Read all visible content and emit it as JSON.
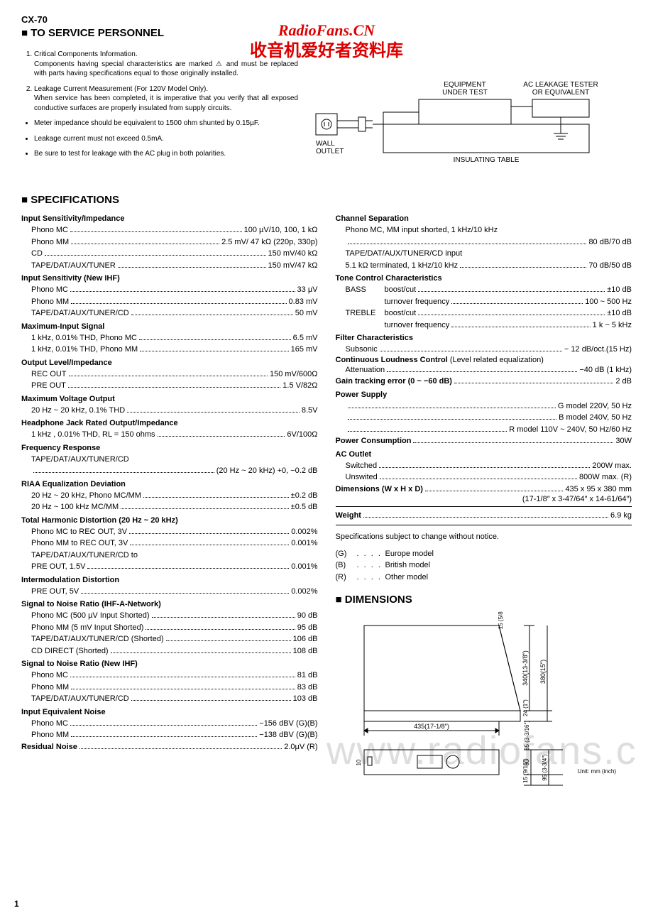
{
  "model": "CX-70",
  "watermark_line1": "RadioFans.CN",
  "watermark_line2": "收音机爱好者资料库",
  "gray_watermark": "www.radiofans.c",
  "service_header": "TO SERVICE PERSONNEL",
  "service_notes_numbered": [
    "Critical Components Information.\nComponents having special characteristics are marked ⚠ and must be replaced with parts having specifications equal to those originally installed.",
    "Leakage Current Measurement (For 120V Model Only).\nWhen service has been completed, it is imperative that you verify that all exposed conductive surfaces are properly insulated from supply circuits."
  ],
  "service_notes_bullets": [
    "Meter impedance should be equivalent to 1500 ohm shunted by 0.15µF.",
    "Leakage current must not exceed 0.5mA.",
    "Be sure to test for leakage with the AC plug in both polarities."
  ],
  "diagram": {
    "wall_outlet": "WALL OUTLET",
    "equipment": "EQUIPMENT UNDER TEST",
    "tester": "AC LEAKAGE TESTER OR EQUIVALENT",
    "insulating": "INSULATING TABLE"
  },
  "specifications_heading": "SPECIFICATIONS",
  "left_col": [
    {
      "type": "heading",
      "text": "Input Sensitivity/Impedance"
    },
    {
      "type": "spec",
      "label": "Phono MC",
      "value": "100 µV/10, 100, 1 kΩ"
    },
    {
      "type": "spec",
      "label": "Phono MM",
      "value": "2.5 mV/ 47 kΩ (220p, 330p)"
    },
    {
      "type": "spec",
      "label": "CD",
      "value": "150 mV/40 kΩ"
    },
    {
      "type": "spec",
      "label": "TAPE/DAT/AUX/TUNER",
      "value": "150 mV/47 kΩ"
    },
    {
      "type": "heading",
      "text": "Input Sensitivity (New IHF)"
    },
    {
      "type": "spec",
      "label": "Phono MC",
      "value": "33 µV"
    },
    {
      "type": "spec",
      "label": "Phono MM",
      "value": "0.83 mV"
    },
    {
      "type": "spec",
      "label": "TAPE/DAT/AUX/TUNER/CD",
      "value": "50 mV"
    },
    {
      "type": "heading",
      "text": "Maximum-Input Signal"
    },
    {
      "type": "spec",
      "label": "1 kHz, 0.01% THD, Phono MC",
      "value": "6.5 mV"
    },
    {
      "type": "spec",
      "label": "1 kHz, 0.01% THD, Phono MM",
      "value": "165 mV"
    },
    {
      "type": "heading",
      "text": "Output Level/Impedance"
    },
    {
      "type": "spec",
      "label": "REC OUT",
      "value": "150 mV/600Ω"
    },
    {
      "type": "spec",
      "label": "PRE OUT",
      "value": "1.5 V/82Ω"
    },
    {
      "type": "heading",
      "text": "Maximum Voltage Output"
    },
    {
      "type": "spec",
      "label": "20 Hz ~ 20 kHz, 0.1% THD",
      "value": "8.5V"
    },
    {
      "type": "heading",
      "text": "Headphone Jack Rated Output/Impedance"
    },
    {
      "type": "spec",
      "label": "1 kHz , 0.01% THD, RL = 150 ohms",
      "value": "6V/100Ω"
    },
    {
      "type": "heading",
      "text": "Frequency Response"
    },
    {
      "type": "text",
      "text": "TAPE/DAT/AUX/TUNER/CD"
    },
    {
      "type": "spec",
      "label": "",
      "value": "(20 Hz ~ 20 kHz) +0, −0.2 dB"
    },
    {
      "type": "heading",
      "text": "RIAA Equalization Deviation"
    },
    {
      "type": "spec",
      "label": "20 Hz ~ 20 kHz, Phono MC/MM",
      "value": "±0.2 dB"
    },
    {
      "type": "spec",
      "label": "20 Hz ~ 100 kHz        MC/MM",
      "value": "±0.5 dB"
    },
    {
      "type": "heading",
      "text": "Total Harmonic Distortion (20 Hz ~ 20 kHz)"
    },
    {
      "type": "spec",
      "label": "Phono MC to REC OUT, 3V",
      "value": "0.002%"
    },
    {
      "type": "spec",
      "label": "Phono MM to REC OUT, 3V",
      "value": "0.001%"
    },
    {
      "type": "text",
      "text": "TAPE/DAT/AUX/TUNER/CD to"
    },
    {
      "type": "spec",
      "label": "PRE OUT, 1.5V",
      "value": "0.001%"
    },
    {
      "type": "heading",
      "text": "Intermodulation Distortion"
    },
    {
      "type": "spec",
      "label": "PRE OUT, 5V",
      "value": "0.002%"
    },
    {
      "type": "heading",
      "text": "Signal to Noise Ratio (IHF-A-Network)"
    },
    {
      "type": "spec",
      "label": "Phono MC (500 µV Input Shorted)",
      "value": "90 dB"
    },
    {
      "type": "spec",
      "label": "Phono MM (5 mV Input Shorted)",
      "value": "95 dB"
    },
    {
      "type": "spec",
      "label": "TAPE/DAT/AUX/TUNER/CD (Shorted)",
      "value": "106 dB"
    },
    {
      "type": "spec",
      "label": "CD DIRECT (Shorted)",
      "value": "108 dB"
    },
    {
      "type": "heading",
      "text": "Signal to Noise Ratio (New IHF)"
    },
    {
      "type": "spec",
      "label": "Phono MC",
      "value": "81 dB"
    },
    {
      "type": "spec",
      "label": "Phono MM",
      "value": "83 dB"
    },
    {
      "type": "spec",
      "label": "TAPE/DAT/AUX/TUNER/CD",
      "value": "103 dB"
    },
    {
      "type": "heading",
      "text": "Input Equivalent Noise"
    },
    {
      "type": "spec",
      "label": "Phono MC",
      "value": "−156 dBV (G)(B)"
    },
    {
      "type": "spec",
      "label": "Phono MM",
      "value": "−138 dBV (G)(B)"
    },
    {
      "type": "spec_inline",
      "label": "Residual Noise",
      "value": "2.0µV (R)"
    }
  ],
  "right_col": [
    {
      "type": "heading",
      "text": "Channel Separation"
    },
    {
      "type": "text",
      "text": "Phono MC, MM input shorted, 1 kHz/10 kHz"
    },
    {
      "type": "spec",
      "label": "",
      "value": "80 dB/70 dB"
    },
    {
      "type": "text",
      "text": "TAPE/DAT/AUX/TUNER/CD input"
    },
    {
      "type": "spec",
      "label": "5.1 kΩ terminated, 1 kHz/10 kHz",
      "value": "70 dB/50 dB"
    },
    {
      "type": "heading",
      "text": "Tone Control Characteristics"
    },
    {
      "type": "tone",
      "label": "BASS",
      "specs": [
        {
          "label": "boost/cut",
          "value": "±10 dB"
        },
        {
          "label": "turnover frequency",
          "value": "100 ~ 500 Hz"
        }
      ]
    },
    {
      "type": "tone",
      "label": "TREBLE",
      "specs": [
        {
          "label": "boost/cut",
          "value": "±10 dB"
        },
        {
          "label": "turnover frequency",
          "value": "1 k ~ 5 kHz"
        }
      ]
    },
    {
      "type": "heading",
      "text": "Filter Characteristics"
    },
    {
      "type": "spec",
      "label": "Subsonic",
      "value": "− 12 dB/oct.(15 Hz)"
    },
    {
      "type": "heading_inline",
      "text": "Continuous Loudness Control",
      "suffix": " (Level related equalization)"
    },
    {
      "type": "spec",
      "label": "Attenuation",
      "value": "−40 dB (1 kHz)"
    },
    {
      "type": "spec_inline",
      "label": "Gain tracking error (0 ~ −60 dB)",
      "value": "2 dB"
    },
    {
      "type": "heading",
      "text": "Power Supply"
    },
    {
      "type": "spec",
      "label": "",
      "value": "G model 220V, 50 Hz"
    },
    {
      "type": "spec",
      "label": "",
      "value": "B model 240V, 50 Hz"
    },
    {
      "type": "spec",
      "label": "",
      "value": "R model 110V ~ 240V, 50 Hz/60 Hz"
    },
    {
      "type": "spec_inline",
      "label": "Power Consumption",
      "value": "30W"
    },
    {
      "type": "heading",
      "text": "AC Outlet"
    },
    {
      "type": "spec",
      "label": "Switched",
      "value": "200W max."
    },
    {
      "type": "spec",
      "label": "Unswited",
      "value": "800W max. (R)"
    },
    {
      "type": "spec_inline",
      "label": "Dimensions (W x H x D)",
      "value": "435 x 95 x 380 mm"
    },
    {
      "type": "right_text",
      "text": "(17-1/8″ x 3-47/64″ x 14-61/64″)"
    },
    {
      "type": "hr"
    },
    {
      "type": "spec_inline",
      "label": "Weight",
      "value": "6.9 kg"
    },
    {
      "type": "hr"
    }
  ],
  "notice": "Specifications subject to change without notice.",
  "model_keys": [
    {
      "code": "(G)",
      "desc": "Europe model"
    },
    {
      "code": "(B)",
      "desc": "British model"
    },
    {
      "code": "(R)",
      "desc": "Other model"
    }
  ],
  "dimensions_heading": "DIMENSIONS",
  "dim_labels": {
    "width": "435(17-1/8″)",
    "depth1": "340(13-3/8″)",
    "depth2": "380(15″)",
    "h1": "15 (5/8″)",
    "h2": "24 (1″)",
    "h3": "85 (3-3/16″)",
    "h4": "80",
    "h5": "95 (3-3/4″)",
    "h6": "15 (9/16″)",
    "h7": "10",
    "unit": "Unit: mm (inch)"
  },
  "page_num": "1"
}
